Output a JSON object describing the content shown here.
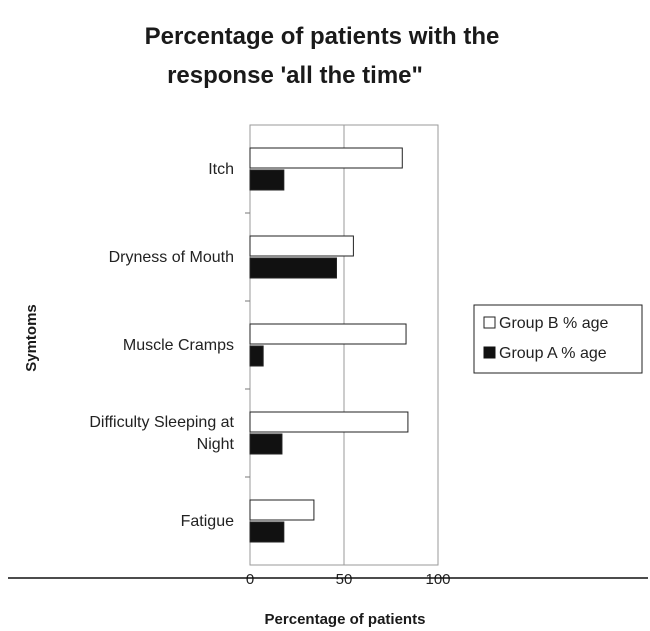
{
  "chart_data": {
    "type": "bar",
    "orientation": "horizontal",
    "title": [
      "Percentage of patients with the",
      "response 'all the time\""
    ],
    "xlabel": "Percentage of patients",
    "ylabel": "Symtoms",
    "xlim": [
      0,
      100
    ],
    "xticks": [
      "0",
      "50",
      "100"
    ],
    "categories": [
      "Itch",
      "Dryness of Mouth",
      "Muscle Cramps",
      "Difficulty Sleeping at Night",
      "Fatigue"
    ],
    "category_lines": [
      [
        "Itch"
      ],
      [
        "Dryness of Mouth"
      ],
      [
        "Muscle Cramps"
      ],
      [
        "Difficulty Sleeping at",
        "Night"
      ],
      [
        "Fatigue"
      ]
    ],
    "series": [
      {
        "name": "Group B % age",
        "values": [
          81,
          55,
          83,
          84,
          34
        ],
        "color": "#ffffff"
      },
      {
        "name": "Group A % age",
        "values": [
          18,
          46,
          7,
          17,
          18
        ],
        "color": "#111111"
      }
    ],
    "grid": "vertical",
    "legend": "right"
  }
}
